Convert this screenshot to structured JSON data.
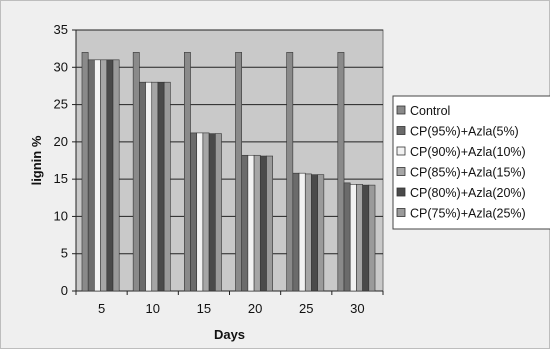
{
  "chart_data": {
    "type": "bar",
    "title": "",
    "xlabel": "Days",
    "ylabel": "lignin %",
    "categories": [
      "5",
      "10",
      "15",
      "20",
      "25",
      "30"
    ],
    "ylim": [
      0,
      35
    ],
    "yticks": [
      0,
      5,
      10,
      15,
      20,
      25,
      30,
      35
    ],
    "grid": true,
    "legend_position": "right",
    "series": [
      {
        "name": "Control",
        "color": "#8a8a8a",
        "values": [
          32,
          32,
          32,
          32,
          32,
          32
        ]
      },
      {
        "name": "CP(95%)+Azla(5%)",
        "color": "#6b6b6b",
        "values": [
          31,
          28,
          21.2,
          18.2,
          15.8,
          14.5
        ]
      },
      {
        "name": "CP(90%)+Azla(10%)",
        "color": "#f2f2f2",
        "values": [
          31,
          28,
          21.2,
          18.2,
          15.8,
          14.3
        ]
      },
      {
        "name": "CP(85%)+Azla(15%)",
        "color": "#a6a6a6",
        "values": [
          31,
          28,
          21.2,
          18.2,
          15.7,
          14.3
        ]
      },
      {
        "name": "CP(80%)+Azla(20%)",
        "color": "#4a4a4a",
        "values": [
          31,
          28,
          21.1,
          18.1,
          15.6,
          14.2
        ]
      },
      {
        "name": "CP(75%)+Azla(25%)",
        "color": "#9a9a9a",
        "values": [
          31,
          28,
          21.1,
          18.1,
          15.6,
          14.2
        ]
      }
    ]
  }
}
